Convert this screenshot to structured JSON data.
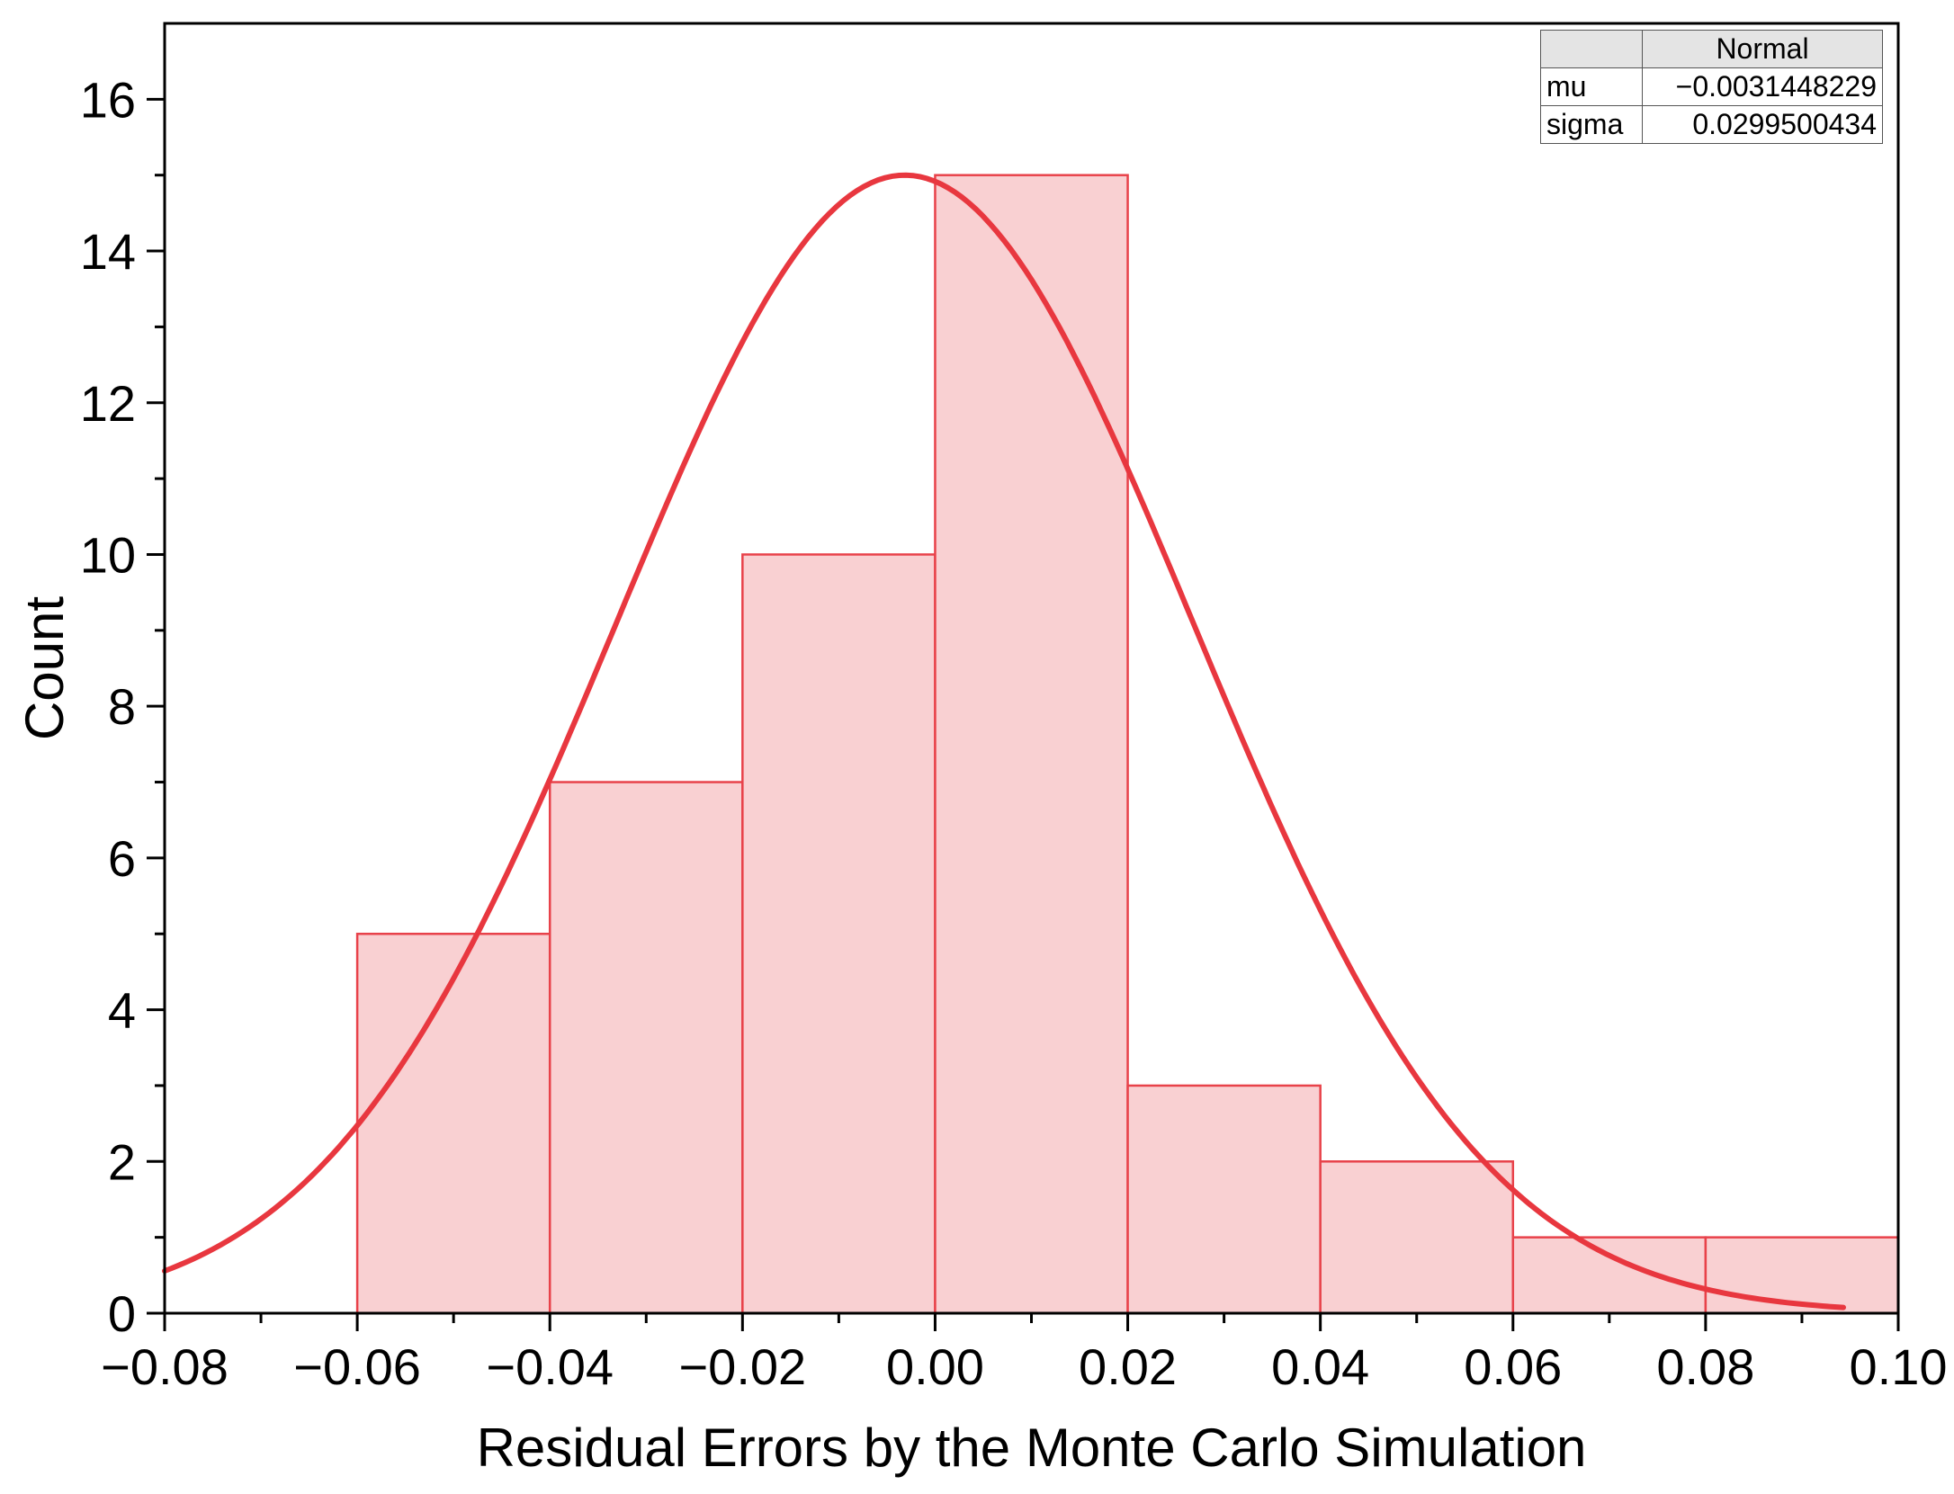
{
  "chart_data": {
    "type": "bar",
    "subtype": "histogram with fitted normal curve",
    "xlabel": "Residual Errors by the Monte Carlo Simulation",
    "ylabel": "Count",
    "xlim": [
      -0.08,
      0.1
    ],
    "ylim": [
      0,
      17
    ],
    "x_ticks": [
      -0.08,
      -0.06,
      -0.04,
      -0.02,
      0.0,
      0.02,
      0.04,
      0.06,
      0.08,
      0.1
    ],
    "x_tick_labels": [
      "−0.08",
      "−0.06",
      "−0.04",
      "−0.02",
      "0.00",
      "0.02",
      "0.04",
      "0.06",
      "0.08",
      "0.10"
    ],
    "y_ticks": [
      0,
      2,
      4,
      6,
      8,
      10,
      12,
      14,
      16
    ],
    "y_tick_labels": [
      "0",
      "2",
      "4",
      "6",
      "8",
      "10",
      "12",
      "14",
      "16"
    ],
    "bins": [
      {
        "x0": -0.06,
        "x1": -0.04,
        "count": 5
      },
      {
        "x0": -0.04,
        "x1": -0.02,
        "count": 7
      },
      {
        "x0": -0.02,
        "x1": 0.0,
        "count": 10
      },
      {
        "x0": 0.0,
        "x1": 0.02,
        "count": 15
      },
      {
        "x0": 0.02,
        "x1": 0.04,
        "count": 3
      },
      {
        "x0": 0.04,
        "x1": 0.06,
        "count": 2
      },
      {
        "x0": 0.06,
        "x1": 0.08,
        "count": 1
      },
      {
        "x0": 0.08,
        "x1": 0.1,
        "count": 1
      }
    ],
    "fit": {
      "distribution": "Normal",
      "mu": -0.0031448229,
      "sigma": 0.0299500434,
      "peak_count": 15,
      "x_range": [
        -0.08,
        0.0943
      ]
    },
    "grid": false,
    "legend_table": {
      "header": [
        "",
        "Normal"
      ],
      "rows": [
        {
          "label": "mu",
          "value": "−0.0031448229"
        },
        {
          "label": "sigma",
          "value": "0.0299500434"
        }
      ]
    },
    "colors": {
      "bar_fill": "#f9d0d2",
      "bar_edge": "#e8424a",
      "curve": "#e8373f",
      "axis": "#000000"
    }
  }
}
